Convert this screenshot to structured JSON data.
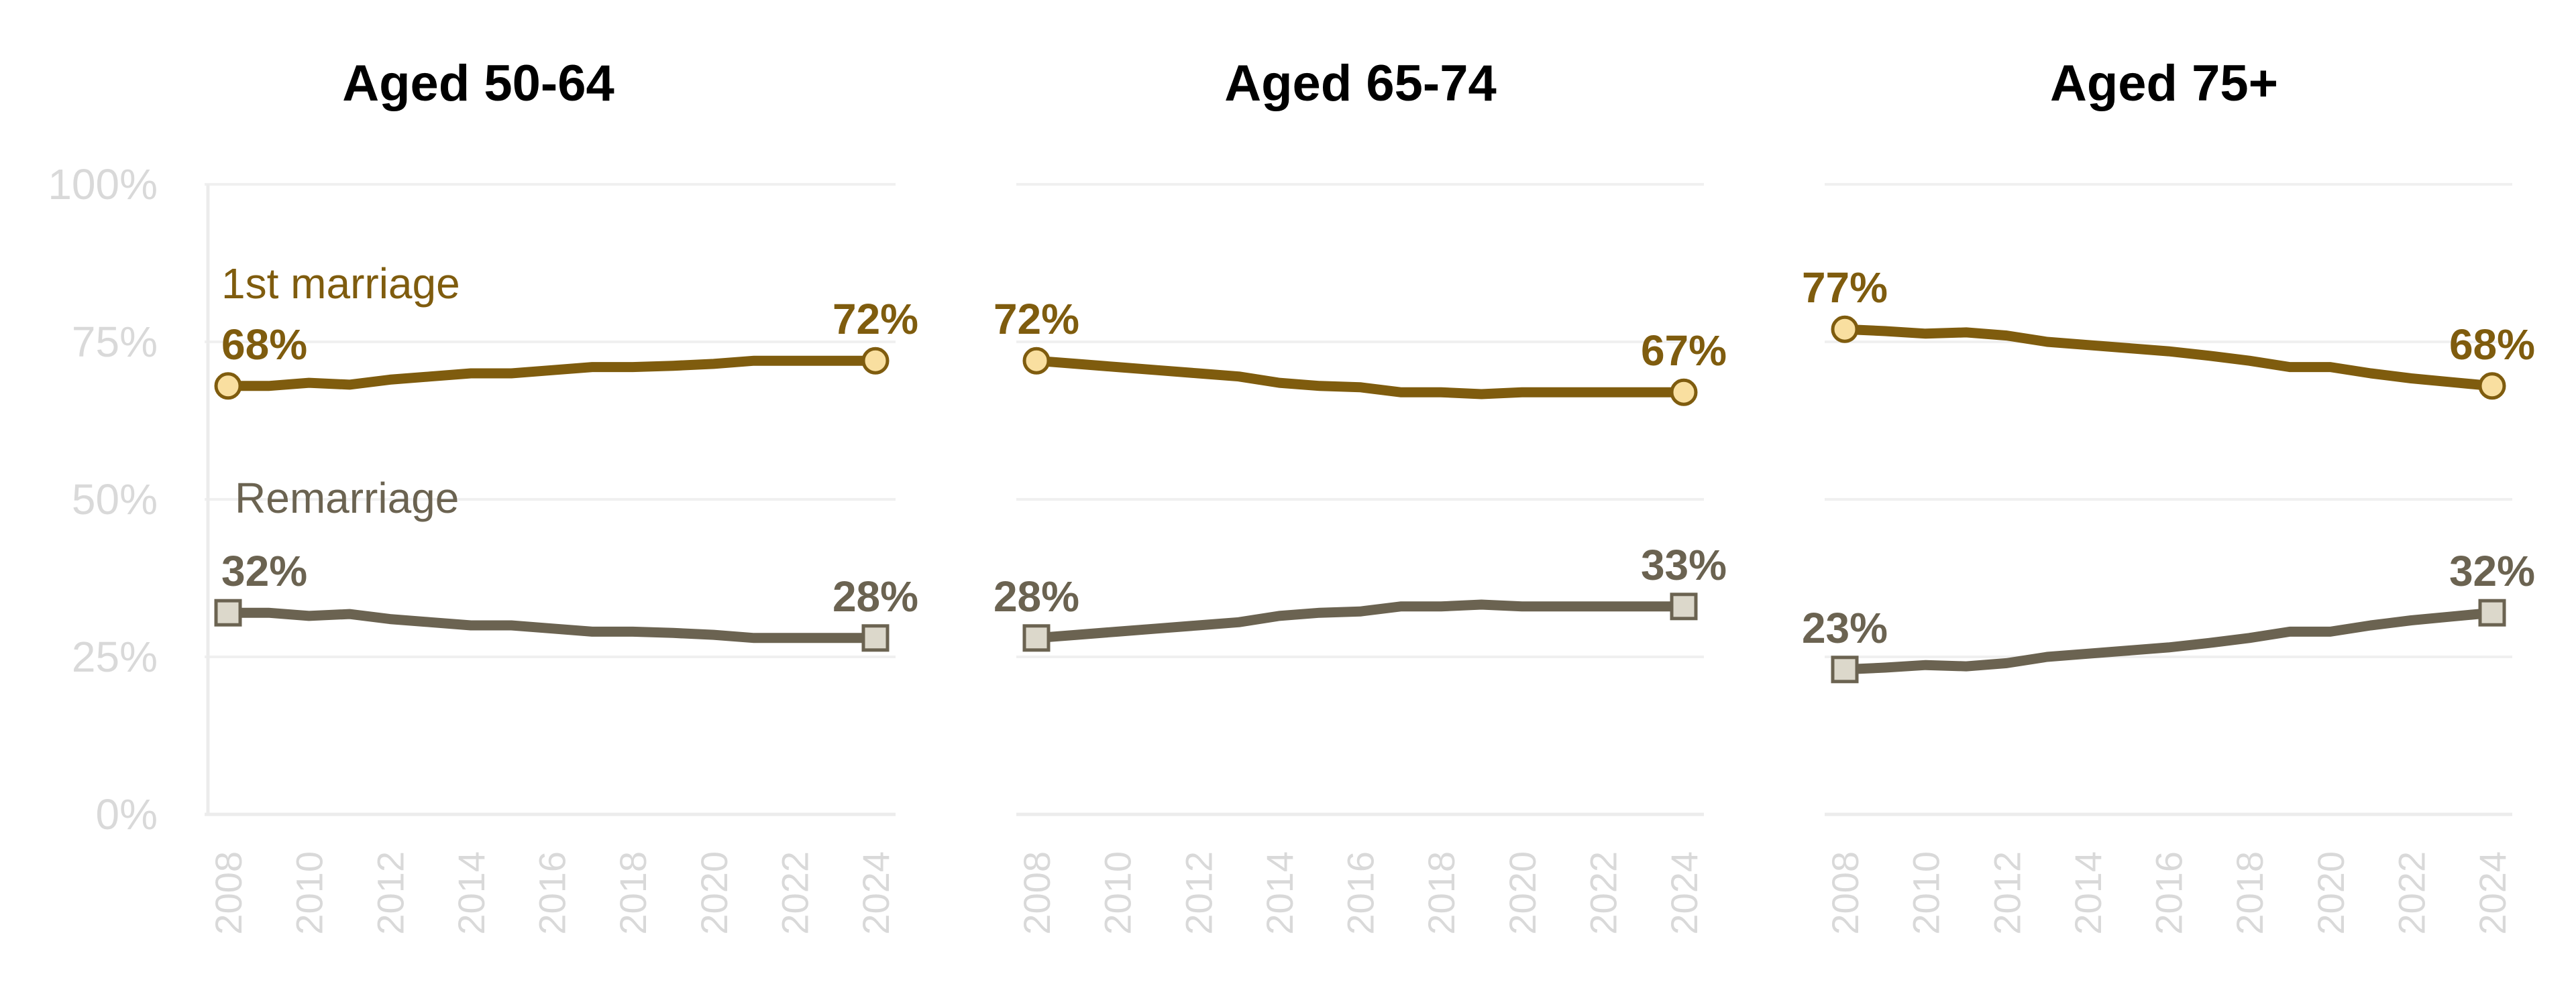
{
  "chart_data": [
    {
      "type": "line",
      "title": "Aged 50-64",
      "x": [
        2008,
        2009,
        2010,
        2011,
        2012,
        2013,
        2014,
        2015,
        2016,
        2017,
        2018,
        2019,
        2020,
        2021,
        2022,
        2023,
        2024
      ],
      "xticks": [
        "2008",
        "2010",
        "2012",
        "2014",
        "2016",
        "2018",
        "2020",
        "2022",
        "2024"
      ],
      "ylim": [
        0,
        100
      ],
      "yticks": [
        "0%",
        "25%",
        "50%",
        "75%",
        "100%"
      ],
      "grid": true,
      "series": [
        {
          "name": "1st marriage",
          "color": "#7f5c0e",
          "marker": "circle",
          "values": [
            68,
            68,
            68.5,
            68.2,
            69,
            69.5,
            70,
            70,
            70.5,
            71,
            71,
            71.2,
            71.5,
            72,
            72,
            72,
            72
          ],
          "start_label": "68%",
          "end_label": "72%"
        },
        {
          "name": "Remarriage",
          "color": "#6b6351",
          "marker": "square",
          "values": [
            32,
            32,
            31.5,
            31.8,
            31,
            30.5,
            30,
            30,
            29.5,
            29,
            29,
            28.8,
            28.5,
            28,
            28,
            28,
            28
          ],
          "start_label": "32%",
          "end_label": "28%"
        }
      ]
    },
    {
      "type": "line",
      "title": "Aged 65-74",
      "x": [
        2008,
        2009,
        2010,
        2011,
        2012,
        2013,
        2014,
        2015,
        2016,
        2017,
        2018,
        2019,
        2020,
        2021,
        2022,
        2023,
        2024
      ],
      "xticks": [
        "2008",
        "2010",
        "2012",
        "2014",
        "2016",
        "2018",
        "2020",
        "2022",
        "2024"
      ],
      "ylim": [
        0,
        100
      ],
      "grid": true,
      "series": [
        {
          "name": "1st marriage",
          "color": "#7f5c0e",
          "marker": "circle",
          "values": [
            72,
            71.5,
            71,
            70.5,
            70,
            69.5,
            68.5,
            68,
            67.8,
            67,
            67,
            66.7,
            67,
            67,
            67,
            67,
            67
          ],
          "start_label": "72%",
          "end_label": "67%"
        },
        {
          "name": "Remarriage",
          "color": "#6b6351",
          "marker": "square",
          "values": [
            28,
            28.5,
            29,
            29.5,
            30,
            30.5,
            31.5,
            32,
            32.2,
            33,
            33,
            33.3,
            33,
            33,
            33,
            33,
            33
          ],
          "start_label": "28%",
          "end_label": "33%"
        }
      ]
    },
    {
      "type": "line",
      "title": "Aged 75+",
      "x": [
        2008,
        2009,
        2010,
        2011,
        2012,
        2013,
        2014,
        2015,
        2016,
        2017,
        2018,
        2019,
        2020,
        2021,
        2022,
        2023,
        2024
      ],
      "xticks": [
        "2008",
        "2010",
        "2012",
        "2014",
        "2016",
        "2018",
        "2020",
        "2022",
        "2024"
      ],
      "ylim": [
        0,
        100
      ],
      "grid": true,
      "series": [
        {
          "name": "1st marriage",
          "color": "#7f5c0e",
          "marker": "circle",
          "values": [
            77,
            76.7,
            76.3,
            76.5,
            76,
            75,
            74.5,
            74,
            73.5,
            72.8,
            72,
            71,
            71,
            70,
            69.2,
            68.6,
            68
          ],
          "start_label": "77%",
          "end_label": "68%"
        },
        {
          "name": "Remarriage",
          "color": "#6b6351",
          "marker": "square",
          "values": [
            23,
            23.3,
            23.7,
            23.5,
            24,
            25,
            25.5,
            26,
            26.5,
            27.2,
            28,
            29,
            29,
            30,
            30.8,
            31.4,
            32
          ],
          "start_label": "23%",
          "end_label": "32%"
        }
      ]
    }
  ]
}
